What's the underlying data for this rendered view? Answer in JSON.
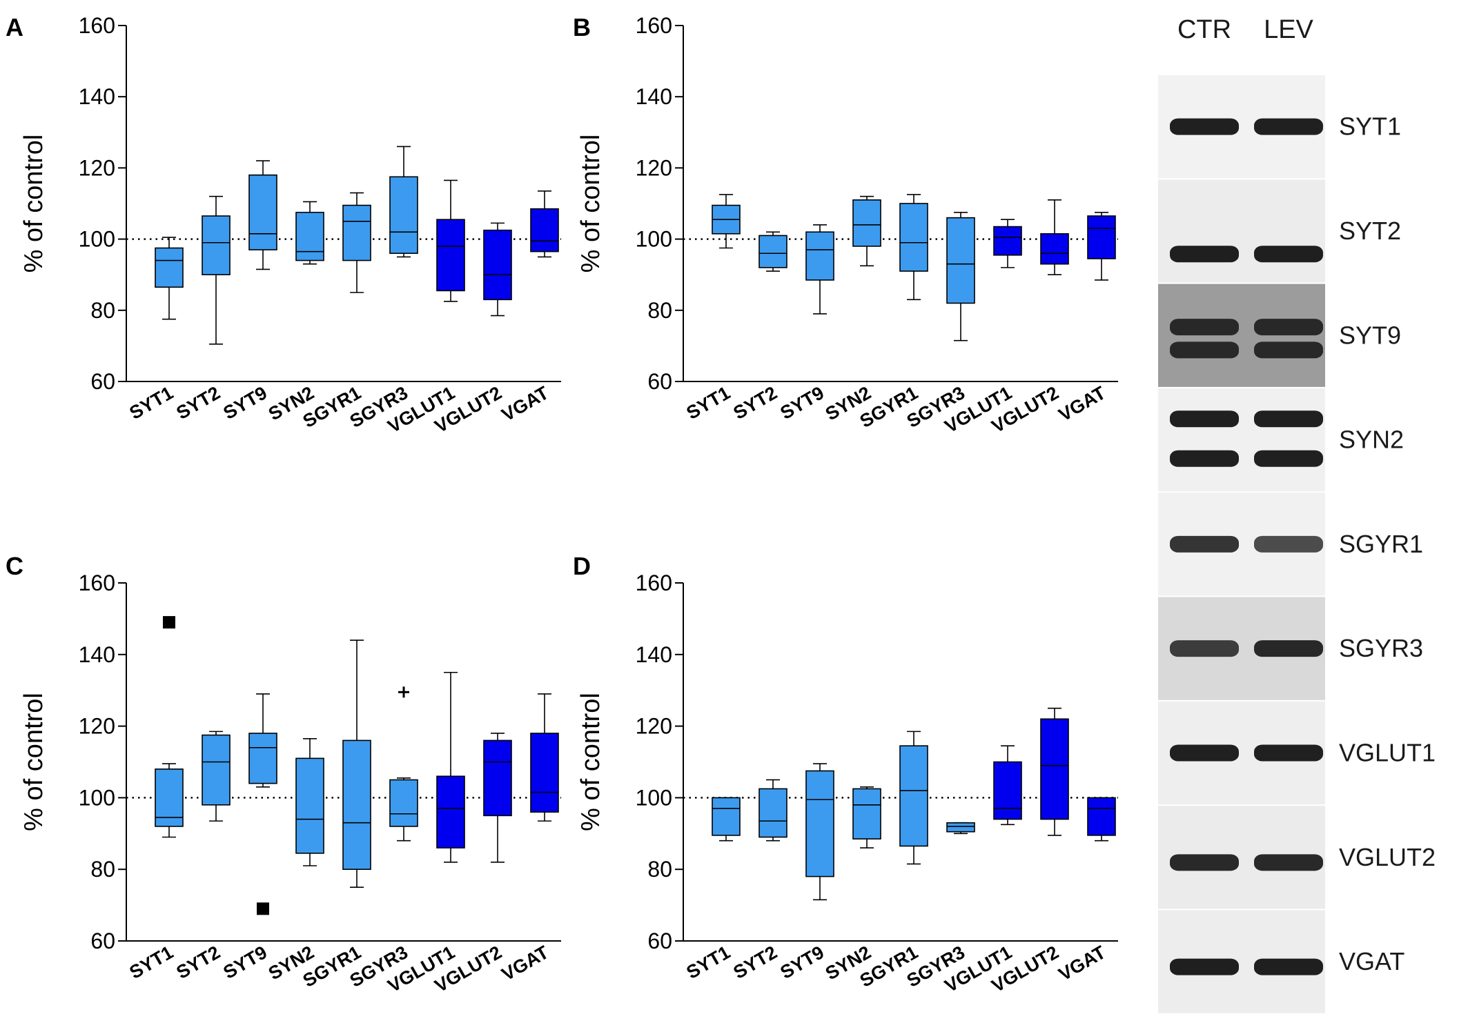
{
  "colors": {
    "light": "#3d9bef",
    "dark": "#0000ee",
    "axis": "#000000"
  },
  "chart_data": [
    {
      "panel": "A",
      "type": "box",
      "ylabel": "% of control",
      "ylim": [
        60,
        160
      ],
      "yticks": [
        60,
        80,
        100,
        120,
        140,
        160
      ],
      "reference_line": 100,
      "categories": [
        "SYT1",
        "SYT2",
        "SYT9",
        "SYN2",
        "SGYR1",
        "SGYR3",
        "VGLUT1",
        "VGLUT2",
        "VGAT"
      ],
      "series": [
        {
          "name": "SYT1",
          "color": "light",
          "min": 77.5,
          "q1": 86.5,
          "median": 94,
          "q3": 97.5,
          "max": 100.5
        },
        {
          "name": "SYT2",
          "color": "light",
          "min": 70.5,
          "q1": 90,
          "median": 99,
          "q3": 106.5,
          "max": 112
        },
        {
          "name": "SYT9",
          "color": "light",
          "min": 91.5,
          "q1": 97,
          "median": 101.5,
          "q3": 118,
          "max": 122
        },
        {
          "name": "SYN2",
          "color": "light",
          "min": 93,
          "q1": 94,
          "median": 96.5,
          "q3": 107.5,
          "max": 110.5
        },
        {
          "name": "SGYR1",
          "color": "light",
          "min": 85,
          "q1": 94,
          "median": 105,
          "q3": 109.5,
          "max": 113
        },
        {
          "name": "SGYR3",
          "color": "light",
          "min": 95,
          "q1": 96,
          "median": 102,
          "q3": 117.5,
          "max": 126
        },
        {
          "name": "VGLUT1",
          "color": "dark",
          "min": 82.5,
          "q1": 85.5,
          "median": 98,
          "q3": 105.5,
          "max": 116.5
        },
        {
          "name": "VGLUT2",
          "color": "dark",
          "min": 78.5,
          "q1": 83,
          "median": 90,
          "q3": 102.5,
          "max": 104.5
        },
        {
          "name": "VGAT",
          "color": "dark",
          "min": 95,
          "q1": 96.5,
          "median": 99.5,
          "q3": 108.5,
          "max": 113.5
        }
      ],
      "outliers": []
    },
    {
      "panel": "B",
      "type": "box",
      "ylabel": "% of control",
      "ylim": [
        60,
        160
      ],
      "yticks": [
        60,
        80,
        100,
        120,
        140,
        160
      ],
      "reference_line": 100,
      "categories": [
        "SYT1",
        "SYT2",
        "SYT9",
        "SYN2",
        "SGYR1",
        "SGYR3",
        "VGLUT1",
        "VGLUT2",
        "VGAT"
      ],
      "series": [
        {
          "name": "SYT1",
          "color": "light",
          "min": 97.5,
          "q1": 101.5,
          "median": 105.5,
          "q3": 109.5,
          "max": 112.5
        },
        {
          "name": "SYT2",
          "color": "light",
          "min": 91,
          "q1": 92,
          "median": 96,
          "q3": 101,
          "max": 102
        },
        {
          "name": "SYT9",
          "color": "light",
          "min": 79,
          "q1": 88.5,
          "median": 97,
          "q3": 102,
          "max": 104
        },
        {
          "name": "SYN2",
          "color": "light",
          "min": 92.5,
          "q1": 98,
          "median": 104,
          "q3": 111,
          "max": 112
        },
        {
          "name": "SGYR1",
          "color": "light",
          "min": 83,
          "q1": 91,
          "median": 99,
          "q3": 110,
          "max": 112.5
        },
        {
          "name": "SGYR3",
          "color": "light",
          "min": 71.5,
          "q1": 82,
          "median": 93,
          "q3": 106,
          "max": 107.5
        },
        {
          "name": "VGLUT1",
          "color": "dark",
          "min": 92,
          "q1": 95.5,
          "median": 100.5,
          "q3": 103.5,
          "max": 105.5
        },
        {
          "name": "VGLUT2",
          "color": "dark",
          "min": 90,
          "q1": 93,
          "median": 96,
          "q3": 101.5,
          "max": 111
        },
        {
          "name": "VGAT",
          "color": "dark",
          "min": 88.5,
          "q1": 94.5,
          "median": 103,
          "q3": 106.5,
          "max": 107.5
        }
      ],
      "outliers": []
    },
    {
      "panel": "C",
      "type": "box",
      "ylabel": "% of control",
      "ylim": [
        60,
        160
      ],
      "yticks": [
        60,
        80,
        100,
        120,
        140,
        160
      ],
      "reference_line": 100,
      "categories": [
        "SYT1",
        "SYT2",
        "SYT9",
        "SYN2",
        "SGYR1",
        "SGYR3",
        "VGLUT1",
        "VGLUT2",
        "VGAT"
      ],
      "series": [
        {
          "name": "SYT1",
          "color": "light",
          "min": 89,
          "q1": 92,
          "median": 94.5,
          "q3": 108,
          "max": 109.5
        },
        {
          "name": "SYT2",
          "color": "light",
          "min": 93.5,
          "q1": 98,
          "median": 110,
          "q3": 117.5,
          "max": 118.5
        },
        {
          "name": "SYT9",
          "color": "light",
          "min": 103,
          "q1": 104,
          "median": 114,
          "q3": 118,
          "max": 129
        },
        {
          "name": "SYN2",
          "color": "light",
          "min": 81,
          "q1": 84.5,
          "median": 94,
          "q3": 111,
          "max": 116.5
        },
        {
          "name": "SGYR1",
          "color": "light",
          "min": 75,
          "q1": 80,
          "median": 93,
          "q3": 116,
          "max": 144
        },
        {
          "name": "SGYR3",
          "color": "light",
          "min": 88,
          "q1": 92,
          "median": 95.5,
          "q3": 105,
          "max": 105.5
        },
        {
          "name": "VGLUT1",
          "color": "dark",
          "min": 82,
          "q1": 86,
          "median": 97,
          "q3": 106,
          "max": 135
        },
        {
          "name": "VGLUT2",
          "color": "dark",
          "min": 82,
          "q1": 95,
          "median": 110,
          "q3": 116,
          "max": 118
        },
        {
          "name": "VGAT",
          "color": "dark",
          "min": 93.5,
          "q1": 96,
          "median": 101.5,
          "q3": 118,
          "max": 129
        }
      ],
      "outliers": [
        {
          "category": "SYT1",
          "value": 149,
          "marker": "square"
        },
        {
          "category": "SYT9",
          "value": 69,
          "marker": "square"
        },
        {
          "category": "SGYR3",
          "value": 129.5,
          "marker": "plus"
        }
      ]
    },
    {
      "panel": "D",
      "type": "box",
      "ylabel": "% of control",
      "ylim": [
        60,
        160
      ],
      "yticks": [
        60,
        80,
        100,
        120,
        140,
        160
      ],
      "reference_line": 100,
      "categories": [
        "SYT1",
        "SYT2",
        "SYT9",
        "SYN2",
        "SGYR1",
        "SGYR3",
        "VGLUT1",
        "VGLUT2",
        "VGAT"
      ],
      "series": [
        {
          "name": "SYT1",
          "color": "light",
          "min": 88,
          "q1": 89.5,
          "median": 97,
          "q3": 100,
          "max": 100
        },
        {
          "name": "SYT2",
          "color": "light",
          "min": 88,
          "q1": 89,
          "median": 93.5,
          "q3": 102.5,
          "max": 105
        },
        {
          "name": "SYT9",
          "color": "light",
          "min": 71.5,
          "q1": 78,
          "median": 99.5,
          "q3": 107.5,
          "max": 109.5
        },
        {
          "name": "SYN2",
          "color": "light",
          "min": 86,
          "q1": 88.5,
          "median": 98,
          "q3": 102.5,
          "max": 103
        },
        {
          "name": "SGYR1",
          "color": "light",
          "min": 81.5,
          "q1": 86.5,
          "median": 102,
          "q3": 114.5,
          "max": 118.5
        },
        {
          "name": "SGYR3",
          "color": "light",
          "min": 90,
          "q1": 90.5,
          "median": 92,
          "q3": 93,
          "max": 93
        },
        {
          "name": "VGLUT1",
          "color": "dark",
          "min": 92.5,
          "q1": 94,
          "median": 97,
          "q3": 110,
          "max": 114.5
        },
        {
          "name": "VGLUT2",
          "color": "dark",
          "min": 89.5,
          "q1": 94,
          "median": 109,
          "q3": 122,
          "max": 125
        },
        {
          "name": "VGAT",
          "color": "dark",
          "min": 88,
          "q1": 89.5,
          "median": 97,
          "q3": 100,
          "max": 100
        }
      ],
      "outliers": []
    }
  ],
  "blot": {
    "header": {
      "ctr": "CTR",
      "lev": "LEV"
    },
    "rows": [
      {
        "label": "SYT1",
        "bg": "#f2f2f2",
        "bands": [
          0.5
        ],
        "intensity": [
          0.95,
          0.95
        ]
      },
      {
        "label": "SYT2",
        "bg": "#ececec",
        "bands": [
          0.72
        ],
        "intensity": [
          0.95,
          0.95
        ]
      },
      {
        "label": "SYT9",
        "bg": "#9c9c9c",
        "bands": [
          0.42,
          0.64
        ],
        "intensity": [
          0.85,
          0.85
        ]
      },
      {
        "label": "SYN2",
        "bg": "#f0f0f0",
        "bands": [
          0.3,
          0.68
        ],
        "intensity": [
          0.95,
          0.95
        ]
      },
      {
        "label": "SGYR1",
        "bg": "#f1f1f1",
        "bands": [
          0.5
        ],
        "intensity": [
          0.85,
          0.75
        ]
      },
      {
        "label": "SGYR3",
        "bg": "#d9d9d9",
        "bands": [
          0.5
        ],
        "intensity": [
          0.8,
          0.9
        ]
      },
      {
        "label": "VGLUT1",
        "bg": "#eeeeee",
        "bands": [
          0.5
        ],
        "intensity": [
          0.95,
          0.95
        ]
      },
      {
        "label": "VGLUT2",
        "bg": "#ebebeb",
        "bands": [
          0.55
        ],
        "intensity": [
          0.9,
          0.9
        ]
      },
      {
        "label": "VGAT",
        "bg": "#ededed",
        "bands": [
          0.55
        ],
        "intensity": [
          0.95,
          0.95
        ]
      }
    ]
  }
}
